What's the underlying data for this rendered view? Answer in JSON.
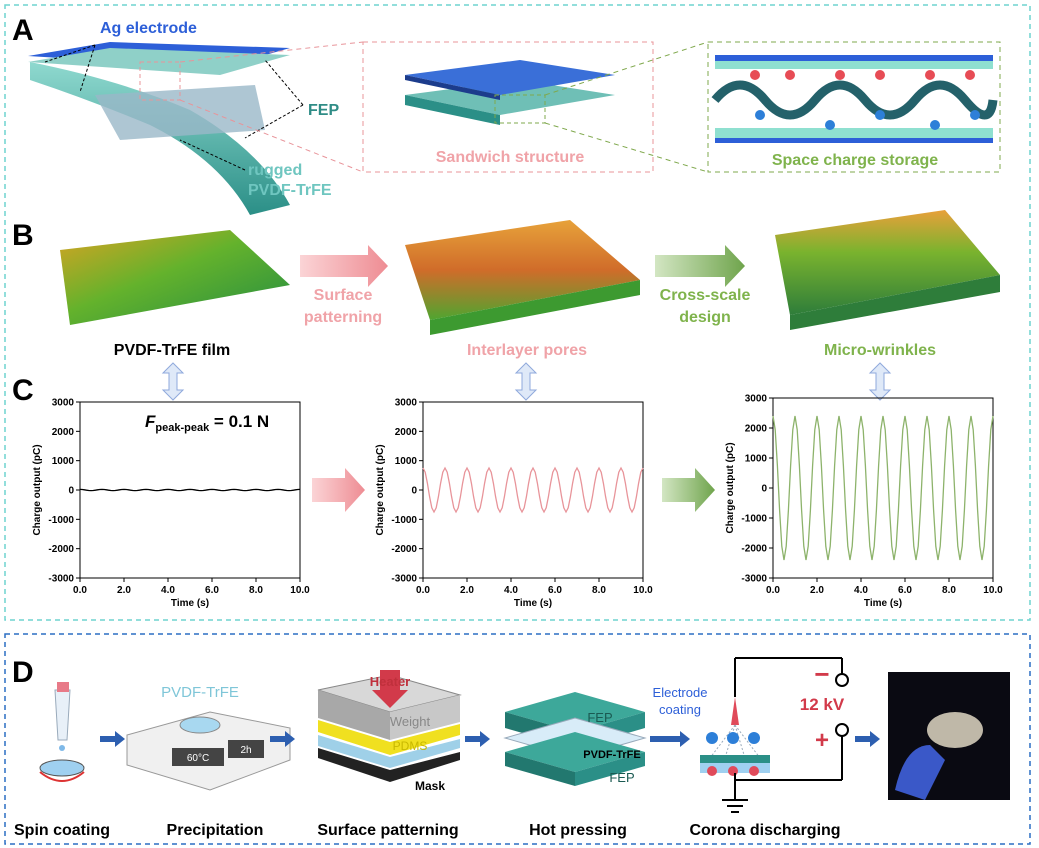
{
  "panel_labels": [
    "A",
    "B",
    "C",
    "D"
  ],
  "panel_a": {
    "ag_electrode": "Ag electrode",
    "fep": "FEP",
    "rugged": "rugged",
    "pvdf": "PVDF-TrFE",
    "sandwich": "Sandwich structure",
    "space_charge": "Space charge storage"
  },
  "panel_b": {
    "film": "PVDF-TrFE film",
    "step1": [
      "Surface",
      "patterning"
    ],
    "pores": "Interlayer pores",
    "step2": [
      "Cross-scale",
      "design"
    ],
    "wrinkles": "Micro-wrinkles"
  },
  "chart_data": [
    {
      "type": "line",
      "xlabel": "Time (s)",
      "ylabel": "Charge output (pC)",
      "color": "#000000",
      "annotation": {
        "symbol": "F",
        "subscript": "peak-peak",
        "text": " = 0.1 N"
      },
      "xlim": [
        0,
        10
      ],
      "ylim": [
        -3000,
        3000
      ],
      "xticks": [
        {
          "value": 0,
          "label": "0.0"
        },
        {
          "value": 2,
          "label": "2.0"
        },
        {
          "value": 4,
          "label": "4.0"
        },
        {
          "value": 6,
          "label": "6.0"
        },
        {
          "value": 8,
          "label": "8.0"
        },
        {
          "value": 10,
          "label": "10.0"
        }
      ],
      "yticks": [
        -3000,
        -2000,
        -1000,
        0,
        1000,
        2000,
        3000
      ],
      "x": [
        0,
        0.1,
        0.2,
        0.3,
        0.4,
        0.5,
        0.6,
        0.7,
        0.8,
        0.9,
        1,
        1.1,
        1.2,
        1.3,
        1.4,
        1.5,
        1.6,
        1.7,
        1.8,
        1.9,
        2,
        2.1,
        2.2,
        2.3,
        2.4,
        2.5,
        2.6,
        2.7,
        2.8,
        2.9,
        3,
        3.1,
        3.2,
        3.3,
        3.4,
        3.5,
        3.6,
        3.7,
        3.8,
        3.9,
        4,
        4.1,
        4.2,
        4.3,
        4.4,
        4.5,
        4.6,
        4.7,
        4.8,
        4.9,
        5,
        5.1,
        5.2,
        5.3,
        5.4,
        5.5,
        5.6,
        5.7,
        5.8,
        5.9,
        6,
        6.1,
        6.2,
        6.3,
        6.4,
        6.5,
        6.6,
        6.7,
        6.8,
        6.9,
        7,
        7.1,
        7.2,
        7.3,
        7.4,
        7.5,
        7.6,
        7.7,
        7.8,
        7.9,
        8,
        8.1,
        8.2,
        8.3,
        8.4,
        8.5,
        8.6,
        8.7,
        8.8,
        8.9,
        9,
        9.1,
        9.2,
        9.3,
        9.4,
        9.5,
        9.6,
        9.7,
        9.8,
        9.9,
        10
      ],
      "values": [
        20,
        16,
        6,
        -6,
        -16,
        -20,
        -16,
        -6,
        6,
        16,
        20,
        16,
        6,
        -6,
        -16,
        -20,
        -16,
        -6,
        6,
        16,
        20,
        16,
        6,
        -6,
        -16,
        -20,
        -16,
        -6,
        6,
        16,
        20,
        16,
        6,
        -6,
        -16,
        -20,
        -16,
        -6,
        6,
        16,
        20,
        16,
        6,
        -6,
        -16,
        -20,
        -16,
        -6,
        6,
        16,
        20,
        16,
        6,
        -6,
        -16,
        -20,
        -16,
        -6,
        6,
        16,
        20,
        16,
        6,
        -6,
        -16,
        -20,
        -16,
        -6,
        6,
        16,
        20,
        16,
        6,
        -6,
        -16,
        -20,
        -16,
        -6,
        6,
        16,
        20,
        16,
        6,
        -6,
        -16,
        -20,
        -16,
        -6,
        6,
        16,
        20,
        16,
        6,
        -6,
        -16,
        -20,
        -16,
        -6,
        6,
        16,
        20
      ]
    },
    {
      "type": "line",
      "xlabel": "Time (s)",
      "ylabel": "Charge output (pC)",
      "color": "#e8949a",
      "xlim": [
        0,
        10
      ],
      "ylim": [
        -3000,
        3000
      ],
      "xticks": [
        {
          "value": 0,
          "label": "0.0"
        },
        {
          "value": 2,
          "label": "2.0"
        },
        {
          "value": 4,
          "label": "4.0"
        },
        {
          "value": 6,
          "label": "6.0"
        },
        {
          "value": 8,
          "label": "8.0"
        },
        {
          "value": 10,
          "label": "10.0"
        }
      ],
      "yticks": [
        -3000,
        -2000,
        -1000,
        0,
        1000,
        2000,
        3000
      ],
      "x": [
        0,
        0.1,
        0.2,
        0.3,
        0.4,
        0.5,
        0.6,
        0.7,
        0.8,
        0.9,
        1,
        1.1,
        1.2,
        1.3,
        1.4,
        1.5,
        1.6,
        1.7,
        1.8,
        1.9,
        2,
        2.1,
        2.2,
        2.3,
        2.4,
        2.5,
        2.6,
        2.7,
        2.8,
        2.9,
        3,
        3.1,
        3.2,
        3.3,
        3.4,
        3.5,
        3.6,
        3.7,
        3.8,
        3.9,
        4,
        4.1,
        4.2,
        4.3,
        4.4,
        4.5,
        4.6,
        4.7,
        4.8,
        4.9,
        5,
        5.1,
        5.2,
        5.3,
        5.4,
        5.5,
        5.6,
        5.7,
        5.8,
        5.9,
        6,
        6.1,
        6.2,
        6.3,
        6.4,
        6.5,
        6.6,
        6.7,
        6.8,
        6.9,
        7,
        7.1,
        7.2,
        7.3,
        7.4,
        7.5,
        7.6,
        7.7,
        7.8,
        7.9,
        8,
        8.1,
        8.2,
        8.3,
        8.4,
        8.5,
        8.6,
        8.7,
        8.8,
        8.9,
        9,
        9.1,
        9.2,
        9.3,
        9.4,
        9.5,
        9.6,
        9.7,
        9.8,
        9.9,
        10
      ],
      "values": [
        750,
        607,
        232,
        -232,
        -607,
        -750,
        -607,
        -232,
        232,
        607,
        750,
        607,
        232,
        -232,
        -607,
        -750,
        -607,
        -232,
        232,
        607,
        750,
        607,
        232,
        -232,
        -607,
        -750,
        -607,
        -232,
        232,
        607,
        750,
        607,
        232,
        -232,
        -607,
        -750,
        -607,
        -232,
        232,
        607,
        750,
        607,
        232,
        -232,
        -607,
        -750,
        -607,
        -232,
        232,
        607,
        750,
        607,
        232,
        -232,
        -607,
        -750,
        -607,
        -232,
        232,
        607,
        750,
        607,
        232,
        -232,
        -607,
        -750,
        -607,
        -232,
        232,
        607,
        750,
        607,
        232,
        -232,
        -607,
        -750,
        -607,
        -232,
        232,
        607,
        750,
        607,
        232,
        -232,
        -607,
        -750,
        -607,
        -232,
        232,
        607,
        750,
        607,
        232,
        -232,
        -607,
        -750,
        -607,
        -232,
        232,
        607,
        750
      ]
    },
    {
      "type": "line",
      "xlabel": "Time (s)",
      "ylabel": "Charge output (pC)",
      "color": "#8db36b",
      "xlim": [
        0,
        10
      ],
      "ylim": [
        -3000,
        3000
      ],
      "xticks": [
        {
          "value": 0,
          "label": "0.0"
        },
        {
          "value": 2,
          "label": "2.0"
        },
        {
          "value": 4,
          "label": "4.0"
        },
        {
          "value": 6,
          "label": "6.0"
        },
        {
          "value": 8,
          "label": "8.0"
        },
        {
          "value": 10,
          "label": "10.0"
        }
      ],
      "yticks": [
        -3000,
        -2000,
        -1000,
        0,
        1000,
        2000,
        3000
      ],
      "x": [
        0,
        0.1,
        0.2,
        0.3,
        0.4,
        0.5,
        0.6,
        0.7,
        0.8,
        0.9,
        1,
        1.1,
        1.2,
        1.3,
        1.4,
        1.5,
        1.6,
        1.7,
        1.8,
        1.9,
        2,
        2.1,
        2.2,
        2.3,
        2.4,
        2.5,
        2.6,
        2.7,
        2.8,
        2.9,
        3,
        3.1,
        3.2,
        3.3,
        3.4,
        3.5,
        3.6,
        3.7,
        3.8,
        3.9,
        4,
        4.1,
        4.2,
        4.3,
        4.4,
        4.5,
        4.6,
        4.7,
        4.8,
        4.9,
        5,
        5.1,
        5.2,
        5.3,
        5.4,
        5.5,
        5.6,
        5.7,
        5.8,
        5.9,
        6,
        6.1,
        6.2,
        6.3,
        6.4,
        6.5,
        6.6,
        6.7,
        6.8,
        6.9,
        7,
        7.1,
        7.2,
        7.3,
        7.4,
        7.5,
        7.6,
        7.7,
        7.8,
        7.9,
        8,
        8.1,
        8.2,
        8.3,
        8.4,
        8.5,
        8.6,
        8.7,
        8.8,
        8.9,
        9,
        9.1,
        9.2,
        9.3,
        9.4,
        9.5,
        9.6,
        9.7,
        9.8,
        9.9,
        10
      ],
      "values": [
        2400,
        1942,
        742,
        -742,
        -1942,
        -2400,
        -1942,
        -742,
        742,
        1942,
        2400,
        1942,
        742,
        -742,
        -1942,
        -2400,
        -1942,
        -742,
        742,
        1942,
        2400,
        1942,
        742,
        -742,
        -1942,
        -2400,
        -1942,
        -742,
        742,
        1942,
        2400,
        1942,
        742,
        -742,
        -1942,
        -2400,
        -1942,
        -742,
        742,
        1942,
        2400,
        1942,
        742,
        -742,
        -1942,
        -2400,
        -1942,
        -742,
        742,
        1942,
        2400,
        1942,
        742,
        -742,
        -1942,
        -2400,
        -1942,
        -742,
        742,
        1942,
        2400,
        1942,
        742,
        -742,
        -1942,
        -2400,
        -1942,
        -742,
        742,
        1942,
        2400,
        1942,
        742,
        -742,
        -1942,
        -2400,
        -1942,
        -742,
        742,
        1942,
        2400,
        1942,
        742,
        -742,
        -1942,
        -2400,
        -1942,
        -742,
        742,
        1942,
        2400,
        1942,
        742,
        -742,
        -1942,
        -2400,
        -1942,
        -742,
        742,
        1942,
        2400
      ]
    }
  ],
  "panel_d": {
    "pvdf": "PVDF-TrFE",
    "temp": "60°C",
    "time": "2h",
    "heater": "Heater",
    "weight": "Weight",
    "pdms": "PDMS",
    "mask": "Mask",
    "fep_top": "FEP",
    "pvdf_mid": "PVDF-TrFE",
    "fep_bottom": "FEP",
    "electrode": [
      "Electrode",
      "coating"
    ],
    "voltage": "12 kV",
    "minus": "−",
    "plus": "+",
    "steps": [
      "Spin coating",
      "Precipitation",
      "Surface patterning",
      "Hot pressing",
      "Corona discharging"
    ]
  }
}
